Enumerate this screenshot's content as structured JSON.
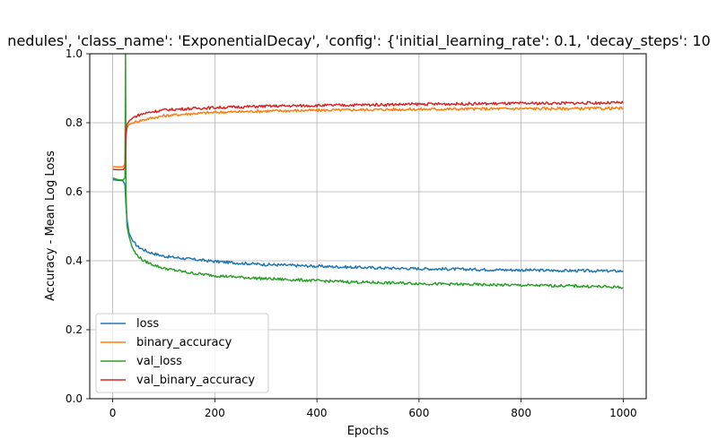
{
  "chart_data": {
    "type": "line",
    "title": "nedules', 'class_name': 'ExponentialDecay', 'config': {'initial_learning_rate': 0.1, 'decay_steps': 10",
    "xlabel": "Epochs",
    "ylabel": "Accuracy - Mean Log Loss",
    "xlim": [
      -45,
      1045
    ],
    "ylim": [
      0.0,
      1.0
    ],
    "x_ticks": [
      "0",
      "200",
      "400",
      "600",
      "800",
      "1000"
    ],
    "x_tick_values": [
      0,
      200,
      400,
      600,
      800,
      1000
    ],
    "y_ticks": [
      "0.0",
      "0.2",
      "0.4",
      "0.6",
      "0.8",
      "1.0"
    ],
    "y_tick_values": [
      0.0,
      0.2,
      0.4,
      0.6,
      0.8,
      1.0
    ],
    "grid": true,
    "legend_position": "lower-left",
    "series": [
      {
        "name": "loss",
        "color": "#1f77b4",
        "x": [
          0,
          10,
          20,
          24,
          26,
          28,
          32,
          40,
          50,
          70,
          100,
          150,
          200,
          250,
          300,
          400,
          500,
          600,
          700,
          800,
          900,
          1000
        ],
        "y": [
          0.635,
          0.633,
          0.632,
          0.62,
          0.56,
          0.52,
          0.48,
          0.455,
          0.44,
          0.425,
          0.413,
          0.405,
          0.398,
          0.393,
          0.389,
          0.384,
          0.38,
          0.377,
          0.375,
          0.373,
          0.371,
          0.37
        ]
      },
      {
        "name": "binary_accuracy",
        "color": "#ff7f0e",
        "x": [
          0,
          10,
          20,
          24,
          26,
          28,
          32,
          40,
          50,
          70,
          100,
          150,
          200,
          250,
          300,
          400,
          500,
          600,
          700,
          800,
          900,
          1000
        ],
        "y": [
          0.673,
          0.672,
          0.672,
          0.68,
          0.76,
          0.785,
          0.795,
          0.8,
          0.805,
          0.812,
          0.82,
          0.826,
          0.83,
          0.832,
          0.834,
          0.836,
          0.838,
          0.839,
          0.84,
          0.841,
          0.841,
          0.842
        ]
      },
      {
        "name": "val_loss",
        "color": "#2ca02c",
        "x": [
          0,
          10,
          20,
          24,
          25,
          26,
          28,
          32,
          38,
          45,
          60,
          80,
          100,
          150,
          200,
          250,
          300,
          400,
          500,
          600,
          700,
          800,
          900,
          1000
        ],
        "y": [
          0.64,
          0.635,
          0.634,
          0.64,
          1.0,
          0.6,
          0.5,
          0.47,
          0.44,
          0.42,
          0.4,
          0.388,
          0.378,
          0.365,
          0.357,
          0.352,
          0.348,
          0.342,
          0.337,
          0.334,
          0.331,
          0.329,
          0.327,
          0.323
        ]
      },
      {
        "name": "val_binary_accuracy",
        "color": "#d62728",
        "x": [
          0,
          10,
          20,
          24,
          26,
          28,
          32,
          40,
          50,
          70,
          100,
          150,
          200,
          250,
          300,
          400,
          500,
          600,
          700,
          800,
          900,
          1000
        ],
        "y": [
          0.665,
          0.664,
          0.664,
          0.67,
          0.77,
          0.795,
          0.805,
          0.815,
          0.822,
          0.83,
          0.837,
          0.841,
          0.844,
          0.846,
          0.848,
          0.85,
          0.852,
          0.854,
          0.855,
          0.856,
          0.857,
          0.858
        ]
      }
    ]
  }
}
